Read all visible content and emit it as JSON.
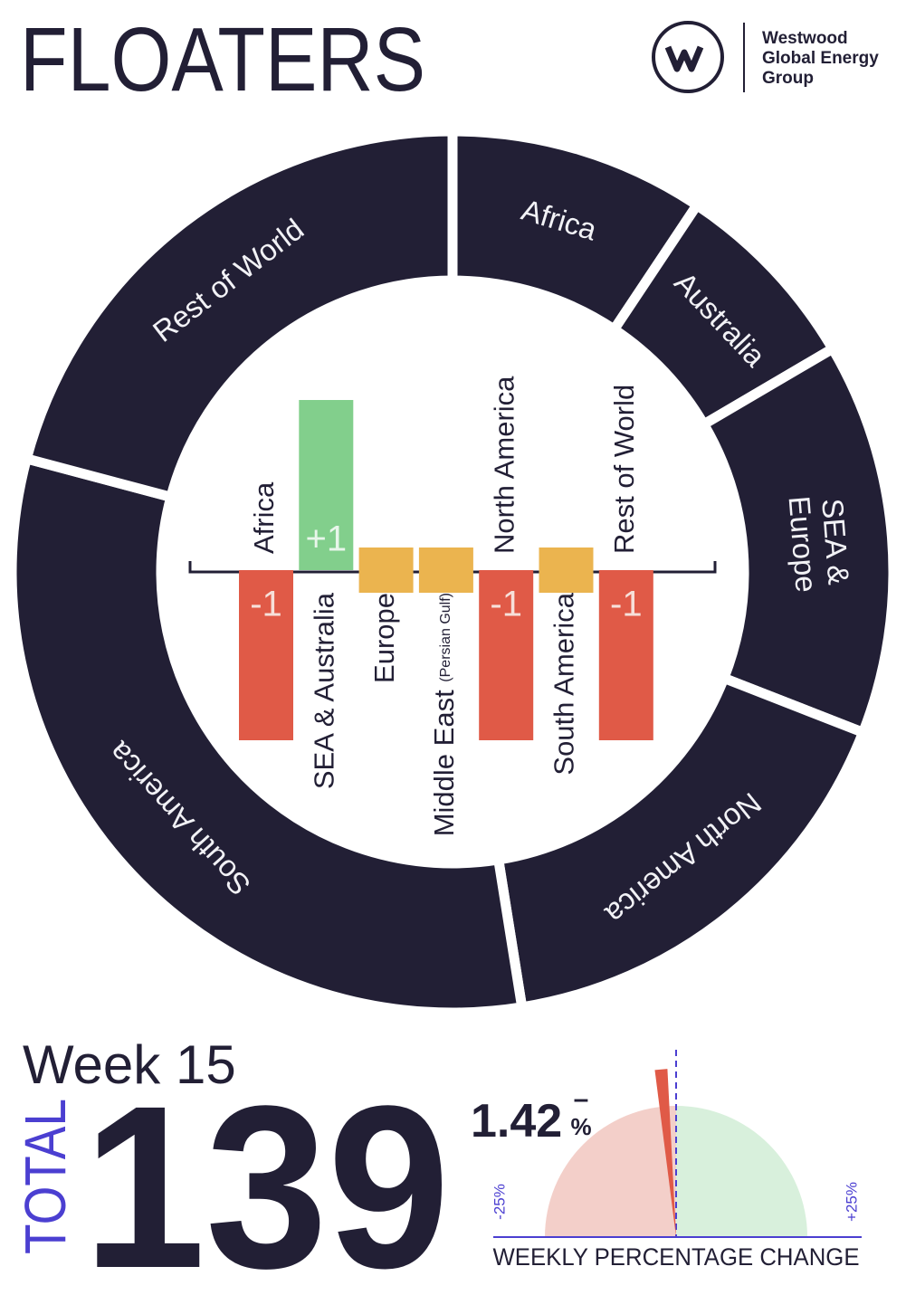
{
  "header": {
    "title": "FLOATERS",
    "brand_lines": [
      "Westwood",
      "Global Energy",
      "Group"
    ]
  },
  "summary": {
    "week_label": "Week 15",
    "total_label": "TOTAL",
    "total": 139
  },
  "chart_data": [
    {
      "type": "donut",
      "labels": [
        "Africa",
        "Australia",
        "SEA & Europe",
        "North America",
        "South America",
        "Rest of World"
      ],
      "values": [
        13,
        10,
        20,
        23,
        44,
        29
      ],
      "color": "#221f35"
    },
    {
      "type": "bar",
      "categories": [
        "Africa",
        "SEA & Australia",
        "Europe",
        "Middle East (Persian Gulf)",
        "North America",
        "South America",
        "Rest of World"
      ],
      "values": [
        -1,
        1,
        0,
        0,
        -1,
        0,
        -1
      ],
      "value_labels": [
        "-1",
        "+1",
        null,
        null,
        "-1",
        null,
        "-1"
      ],
      "colors": {
        "positive": "#82cf8c",
        "negative": "#e05a47",
        "zero": "#ebb44f"
      }
    },
    {
      "type": "gauge",
      "title": "WEEKLY PERCENTAGE CHANGE",
      "value": -1.42,
      "value_label": "1.42",
      "sign_label": "–",
      "unit_label": "%",
      "xlim": [
        -25,
        25
      ],
      "xticks": [
        {
          "value": -25,
          "label": "-25%"
        },
        {
          "value": 25,
          "label": "+25%"
        }
      ],
      "colors": {
        "negative": "#f3cfc9",
        "positive": "#d8f0dc",
        "needle": "#e05a47",
        "axis": "#4b3fd1"
      }
    }
  ]
}
